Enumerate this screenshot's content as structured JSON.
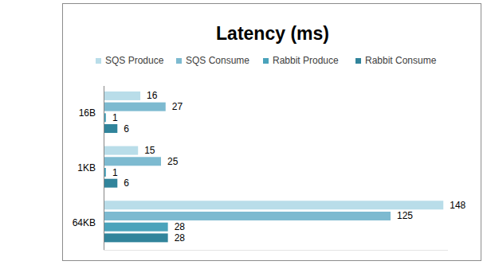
{
  "chart_data": {
    "type": "bar",
    "orientation": "horizontal",
    "title": "Latency (ms)",
    "categories": [
      "16B",
      "1KB",
      "64KB"
    ],
    "series": [
      {
        "name": "SQS Produce",
        "color": "#b9dde9",
        "values": [
          16,
          15,
          148
        ]
      },
      {
        "name": "SQS Consume",
        "color": "#7dbad0",
        "values": [
          27,
          25,
          125
        ]
      },
      {
        "name": "Rabbit Produce",
        "color": "#4aa3bb",
        "values": [
          1,
          1,
          28
        ]
      },
      {
        "name": "Rabbit Consume",
        "color": "#31849b",
        "values": [
          6,
          6,
          28
        ]
      }
    ],
    "xlim": [
      0,
      150
    ],
    "grid": false,
    "legend": "top",
    "data_labels": true,
    "tick_labels": "y"
  }
}
